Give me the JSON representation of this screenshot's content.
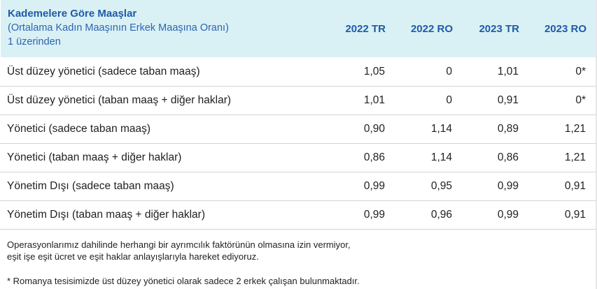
{
  "header": {
    "title": "Kademelere Göre Maaşlar",
    "subtitle_line1": "(Ortalama Kadın Maaşının Erkek Maaşına Oranı)",
    "subtitle_line2": "1 üzerinden",
    "columns": [
      "2022 TR",
      "2022 RO",
      "2023 TR",
      "2023 RO"
    ]
  },
  "rows": [
    {
      "label": "Üst düzey yönetici (sadece taban maaş)",
      "values": [
        "1,05",
        "0",
        "1,01",
        "0*"
      ]
    },
    {
      "label": "Üst düzey yönetici (taban maaş + diğer haklar)",
      "values": [
        "1,01",
        "0",
        "0,91",
        "0*"
      ]
    },
    {
      "label": "Yönetici (sadece taban maaş)",
      "values": [
        "0,90",
        "1,14",
        "0,89",
        "1,21"
      ]
    },
    {
      "label": "Yönetici (taban maaş + diğer haklar)",
      "values": [
        "0,86",
        "1,14",
        "0,86",
        "1,21"
      ]
    },
    {
      "label": "Yönetim Dışı (sadece taban maaş)",
      "values": [
        "0,99",
        "0,95",
        "0,99",
        "0,91"
      ]
    },
    {
      "label": "Yönetim Dışı (taban maaş + diğer haklar)",
      "values": [
        "0,99",
        "0,96",
        "0,99",
        "0,91"
      ]
    }
  ],
  "notes": {
    "line1": "Operasyonlarımız dahilinde herhangi bir ayrımcılık faktörünün olmasına izin vermiyor,",
    "line2": "eşit işe eşit ücret ve eşit haklar anlayışlarıyla hareket ediyoruz.",
    "footnote": "* Romanya tesisimizde üst düzey yönetici olarak sadece 2 erkek çalışan bulunmaktadır."
  }
}
